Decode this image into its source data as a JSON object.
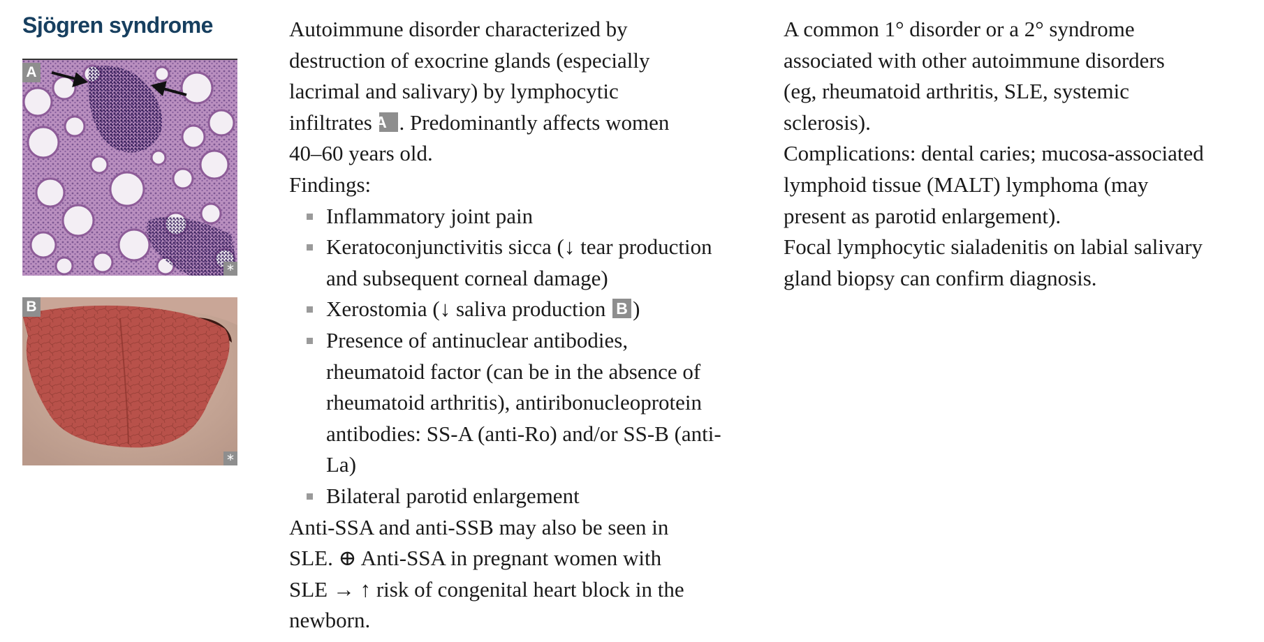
{
  "title": "Sjögren syndrome",
  "figures": {
    "a": {
      "label": "A",
      "mark": "*"
    },
    "b": {
      "label": "B",
      "mark": "*"
    }
  },
  "column2": {
    "intro": [
      "Autoimmune disorder characterized by",
      "destruction of exocrine glands (especially",
      "lacrimal and salivary) by lymphocytic",
      "infiltrates",
      "A",
      ". Predominantly affects women",
      "40–60 years old."
    ],
    "findings_label": "Findings:",
    "findings": {
      "f1": [
        "Inflammatory joint pain"
      ],
      "f2": [
        "Keratoconjunctivitis sicca (↓ tear production",
        "and subsequent corneal damage)"
      ],
      "f3": [
        "Xerostomia (↓ saliva production",
        "B",
        ")"
      ],
      "f4": [
        "Presence of antinuclear antibodies,",
        "rheumatoid factor (can be in the absence of",
        "rheumatoid arthritis), antiribonucleoprotein",
        "antibodies: SS-A (anti-Ro) and/or SS-B (anti-",
        "La)"
      ],
      "f5": [
        "Bilateral parotid enlargement"
      ]
    },
    "anti": [
      "Anti-SSA and anti-SSB may also be seen in",
      "SLE. ⊕ Anti-SSA in pregnant women with",
      "SLE → ↑ risk of congenital heart block in the",
      "newborn."
    ]
  },
  "column3": {
    "p1": [
      "A common 1° disorder or a 2° syndrome",
      "associated with other autoimmune disorders",
      "(eg, rheumatoid arthritis, SLE, systemic",
      "sclerosis)."
    ],
    "p2": [
      "Complications: dental caries; mucosa-associated",
      "lymphoid tissue (MALT) lymphoma (may",
      "present as parotid enlargement)."
    ],
    "p3": [
      "Focal lymphocytic sialadenitis on labial salivary",
      "gland biopsy can confirm diagnosis."
    ]
  }
}
